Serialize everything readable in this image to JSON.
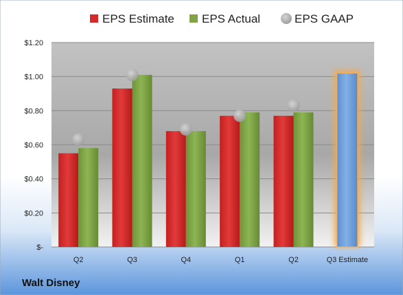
{
  "chart_data": {
    "type": "bar",
    "categories": [
      "Q2",
      "Q3",
      "Q4",
      "Q1",
      "Q2",
      "Q3 Estimate"
    ],
    "series": [
      {
        "name": "EPS Estimate",
        "color": "#d52a2a",
        "values": [
          0.55,
          0.93,
          0.68,
          0.77,
          0.77,
          null
        ]
      },
      {
        "name": "EPS Actual",
        "color": "#7fa346",
        "values": [
          0.58,
          1.01,
          0.68,
          0.79,
          0.79,
          null
        ]
      },
      {
        "name": "EPS GAAP",
        "type": "scatter",
        "color": "#a9a9a9",
        "values": [
          0.63,
          1.01,
          0.69,
          0.77,
          0.83,
          null
        ]
      },
      {
        "name": "",
        "color": "#6f9fd8",
        "highlight": "#f5a94c",
        "values": [
          null,
          null,
          null,
          null,
          null,
          1.02
        ]
      }
    ],
    "ylim": [
      0,
      1.2
    ],
    "yticks": [
      {
        "value": 0,
        "label": "$-"
      },
      {
        "value": 0.2,
        "label": "$0.20"
      },
      {
        "value": 0.4,
        "label": "$0.40"
      },
      {
        "value": 0.6,
        "label": "$0.60"
      },
      {
        "value": 0.8,
        "label": "$0.80"
      },
      {
        "value": 1.0,
        "label": "$1.00"
      },
      {
        "value": 1.2,
        "label": "$1.20"
      }
    ],
    "grid": true,
    "legend_position": "top",
    "company": "Walt Disney"
  }
}
